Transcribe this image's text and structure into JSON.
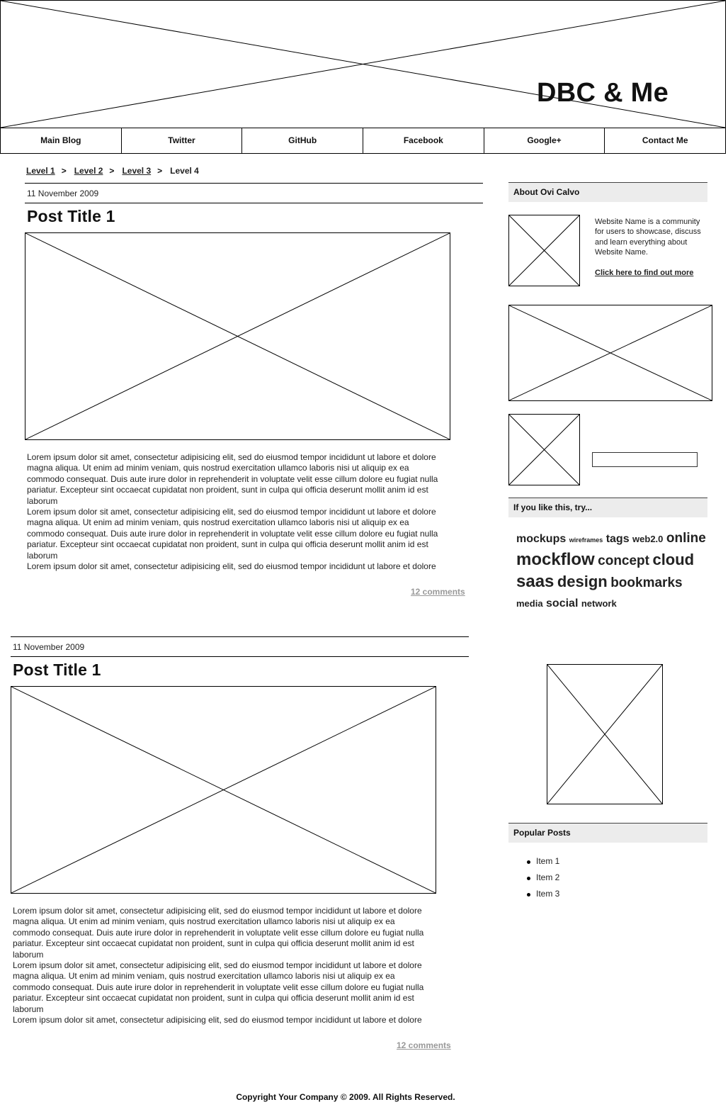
{
  "header": {
    "site_title": "DBC & Me"
  },
  "nav": [
    "Main Blog",
    "Twitter",
    "GitHub",
    "Facebook",
    "Google+",
    "Contact Me"
  ],
  "breadcrumb": {
    "items": [
      "Level 1",
      "Level 2",
      "Level 3"
    ],
    "current": "Level 4",
    "separator": ">"
  },
  "posts": [
    {
      "date": "11 November 2009",
      "title": "Post Title 1",
      "body": "Lorem ipsum dolor sit amet, consectetur adipisicing elit, sed do eiusmod tempor incididunt ut labore et dolore\nmagna aliqua. Ut enim ad minim veniam, quis nostrud exercitation ullamco laboris nisi ut aliquip ex ea\ncommodo consequat. Duis aute irure dolor in reprehenderit in voluptate velit esse cillum dolore eu fugiat nulla\npariatur. Excepteur sint occaecat cupidatat non proident, sunt in culpa qui officia deserunt mollit anim id est\nlaborum\nLorem ipsum dolor sit amet, consectetur adipisicing elit, sed do eiusmod tempor incididunt ut labore et dolore\nmagna aliqua. Ut enim ad minim veniam, quis nostrud exercitation ullamco laboris nisi ut aliquip ex ea\ncommodo consequat. Duis aute irure dolor in reprehenderit in voluptate velit esse cillum dolore eu fugiat nulla\npariatur. Excepteur sint occaecat cupidatat non proident, sunt in culpa qui officia deserunt mollit anim id est\nlaborum\nLorem ipsum dolor sit amet, consectetur adipisicing elit, sed do eiusmod tempor incididunt ut labore et dolore",
      "comments": "12 comments"
    },
    {
      "date": "11 November 2009",
      "title": "Post Title 1",
      "body": "Lorem ipsum dolor sit amet, consectetur adipisicing elit, sed do eiusmod tempor incididunt ut labore et dolore\nmagna aliqua. Ut enim ad minim veniam, quis nostrud exercitation ullamco laboris nisi ut aliquip ex ea\ncommodo consequat. Duis aute irure dolor in reprehenderit in voluptate velit esse cillum dolore eu fugiat nulla\npariatur. Excepteur sint occaecat cupidatat non proident, sunt in culpa qui officia deserunt mollit anim id est\nlaborum\nLorem ipsum dolor sit amet, consectetur adipisicing elit, sed do eiusmod tempor incididunt ut labore et dolore\nmagna aliqua. Ut enim ad minim veniam, quis nostrud exercitation ullamco laboris nisi ut aliquip ex ea\ncommodo consequat. Duis aute irure dolor in reprehenderit in voluptate velit esse cillum dolore eu fugiat nulla\npariatur. Excepteur sint occaecat cupidatat non proident, sunt in culpa qui officia deserunt mollit anim id est\nlaborum\nLorem ipsum dolor sit amet, consectetur adipisicing elit, sed do eiusmod tempor incididunt ut labore et dolore",
      "comments": "12 comments"
    }
  ],
  "sidebar": {
    "about": {
      "heading": "About Ovi Calvo",
      "text": "Website Name is a community for users to showcase, discuss and learn everything about Website Name.",
      "link": "Click here to find out more"
    },
    "search": {
      "value": "",
      "placeholder": ""
    },
    "try_heading": "If you like this, try...",
    "tags": [
      {
        "text": "mockups",
        "weight": 2
      },
      {
        "text": "wireframes",
        "weight": 0
      },
      {
        "text": "tags",
        "weight": 2
      },
      {
        "text": "web2.0",
        "weight": 1
      },
      {
        "text": "online",
        "weight": 3
      },
      {
        "text": "mockflow",
        "weight": 5
      },
      {
        "text": "concept",
        "weight": 3
      },
      {
        "text": "cloud",
        "weight": 4
      },
      {
        "text": "saas",
        "weight": 5
      },
      {
        "text": "design",
        "weight": 4
      },
      {
        "text": "bookmarks",
        "weight": 3
      },
      {
        "text": "media",
        "weight": 1
      },
      {
        "text": "social",
        "weight": 2
      },
      {
        "text": "network",
        "weight": 1
      }
    ],
    "popular_heading": "Popular Posts",
    "popular_items": [
      "Item 1",
      "Item 2",
      "Item 3"
    ]
  },
  "footer": {
    "copyright": "Copyright Your Company © 2009. All Rights Reserved."
  }
}
